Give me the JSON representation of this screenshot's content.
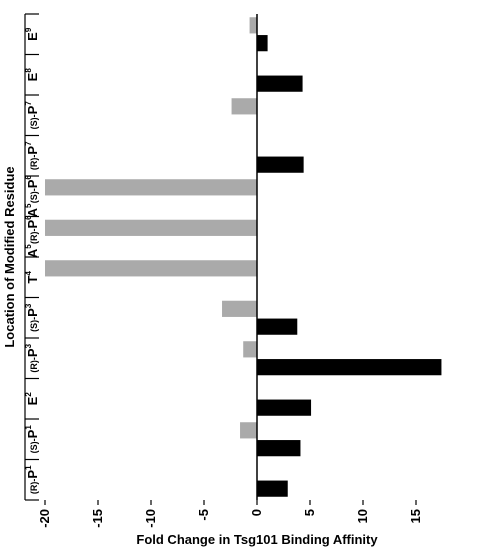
{
  "chart_data": {
    "type": "bar",
    "orientation": "horizontal",
    "xlabel": "Fold Change in Tsg101 Binding Affinity",
    "ylabel": "Location of Modified Residue",
    "xlim": [
      -20,
      20
    ],
    "xticks": [
      "-20",
      "-15",
      "-10",
      "-5",
      "0",
      "5",
      "10",
      "15"
    ],
    "categories": [
      {
        "prefix": "(R)-",
        "base": "P",
        "sup": "1"
      },
      {
        "prefix": "(S)-",
        "base": "P",
        "sup": "1"
      },
      {
        "prefix": "",
        "base": "E",
        "sup": "2"
      },
      {
        "prefix": "(R)-",
        "base": "P",
        "sup": "3"
      },
      {
        "prefix": "(S)-",
        "base": "P",
        "sup": "3"
      },
      {
        "prefix": "",
        "base": "T",
        "sup": "4"
      },
      {
        "prefix": "",
        "base": "A",
        "sup": "5"
      },
      {
        "prefix": "",
        "base": "A",
        "sup": "5"
      },
      {
        "prefix": "(R)-",
        "base": "P",
        "sup": "6"
      },
      {
        "prefix": "(S)-",
        "base": "P",
        "sup": "6"
      },
      {
        "prefix": "(R)-",
        "base": "P",
        "sup": "7"
      },
      {
        "prefix": "(S)-",
        "base": "P",
        "sup": "7"
      },
      {
        "prefix": "",
        "base": "E",
        "sup": "8"
      },
      {
        "prefix": "",
        "base": "E",
        "sup": "9"
      }
    ],
    "band_labels": [
      [
        0
      ],
      [
        1
      ],
      [
        2
      ],
      [
        3
      ],
      [
        4
      ],
      [
        5
      ],
      [
        6,
        8
      ],
      [
        7,
        9
      ],
      [
        10
      ],
      [
        11
      ],
      [
        12
      ],
      [
        13
      ]
    ],
    "series": [
      {
        "color": "#aaaaaa",
        "values": [
          null,
          -1.6,
          null,
          -1.3,
          -3.3,
          -20,
          null,
          null,
          -20,
          -20,
          null,
          -2.4,
          null,
          -0.7
        ]
      },
      {
        "color": "#000000",
        "values": [
          2.9,
          4.1,
          5.1,
          17.4,
          3.8,
          null,
          null,
          null,
          null,
          null,
          4.4,
          null,
          4.3,
          1.0
        ]
      }
    ],
    "grid": false,
    "colors": {
      "negative": "#aaaaaa",
      "positive": "#000000"
    }
  }
}
